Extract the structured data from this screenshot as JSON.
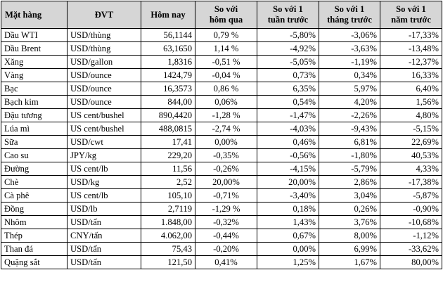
{
  "headers": [
    "Mặt hàng",
    "ĐVT",
    "Hôm nay",
    "So với\nhôm qua",
    "So với 1\ntuần trước",
    "So với 1\ntháng trước",
    "So với 1\nnăm trước"
  ],
  "rows": [
    [
      "Dầu WTI",
      "USD/thùng",
      "56,1144",
      "0,79 %",
      "-5,80%",
      "-3,06%",
      "-17,33%"
    ],
    [
      "Dầu Brent",
      "USD/thùng",
      "63,1650",
      "1,14 %",
      "-4,92%",
      "-3,63%",
      "-13,48%"
    ],
    [
      "Xăng",
      "USD/gallon",
      "1,8316",
      "-0,51 %",
      "-5,05%",
      "-1,19%",
      "-12,37%"
    ],
    [
      "Vàng",
      "USD/ounce",
      "1424,79",
      "-0,04 %",
      "0,73%",
      "0,34%",
      "16,33%"
    ],
    [
      "Bạc",
      "USD/ounce",
      "16,3573",
      "0,86 %",
      "6,35%",
      "5,97%",
      "6,40%"
    ],
    [
      "Bạch kim",
      "USD/ounce",
      "844,00",
      "0,06%",
      "0,54%",
      "4,20%",
      "1,56%"
    ],
    [
      "Đậu tương",
      "US cent/bushel",
      "890,4420",
      "-1,28 %",
      "-1,47%",
      "-2,26%",
      "4,80%"
    ],
    [
      "Lúa mì",
      "US cent/bushel",
      "488,0815",
      "-2,74 %",
      "-4,03%",
      "-9,43%",
      "-5,15%"
    ],
    [
      "Sữa",
      "USD/cwt",
      "17,41",
      "0,00%",
      "0,46%",
      "6,81%",
      "22,69%"
    ],
    [
      "Cao su",
      "JPY/kg",
      "229,20",
      "-0,35%",
      "-0,56%",
      "-1,80%",
      "40,53%"
    ],
    [
      "Đường",
      "US cent/lb",
      "11,56",
      "-0,26%",
      "-4,15%",
      "-5,79%",
      "4,33%"
    ],
    [
      "Chè",
      "USD/kg",
      "2,52",
      "20,00%",
      "20,00%",
      "2,86%",
      "-17,38%"
    ],
    [
      "Cà phê",
      "US cent/lb",
      "105,10",
      "-0,71%",
      "-3,40%",
      "3,04%",
      "-5,87%"
    ],
    [
      "Đồng",
      "USD/lb",
      "2,7119",
      "-1,29 %",
      "0,18%",
      "0,26%",
      "-0,90%"
    ],
    [
      "Nhôm",
      "USD/tấn",
      "1.848,00",
      "-0,32%",
      "1,43%",
      "3,76%",
      "-10,68%"
    ],
    [
      "Thép",
      "CNY/tấn",
      "4.062,00",
      "-0,44%",
      "0,67%",
      "8,00%",
      "-1,12%"
    ],
    [
      "Than đá",
      "USD/tấn",
      "75,43",
      "-0,20%",
      "0,00%",
      "6,99%",
      "-33,62%"
    ],
    [
      "Quặng sắt",
      "USD/tấn",
      "121,50",
      "0,41%",
      "1,25%",
      "1,67%",
      "80,00%"
    ]
  ]
}
